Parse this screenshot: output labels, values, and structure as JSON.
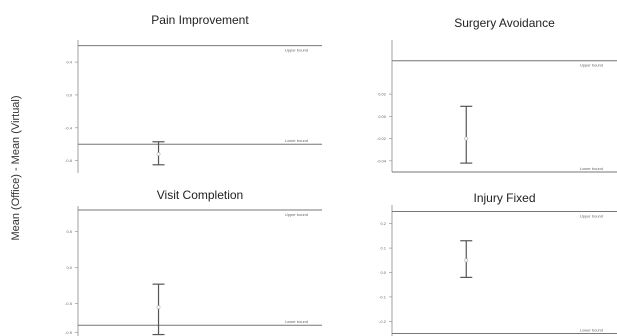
{
  "ylabel": "Mean (Office) - Mean (Virtual)",
  "bound_labels": {
    "upper": "Upper bound",
    "lower": "Lower bound"
  },
  "chart_data": [
    {
      "type": "scatter",
      "title": "Pain Improvement",
      "ylim": [
        -0.95,
        0.62
      ],
      "yticks": [
        0.4,
        0.0,
        -0.4,
        -0.8
      ],
      "tick_labels": [
        "0.4",
        "0.0",
        "-0.4",
        "-0.8"
      ],
      "upper_bound": 0.6,
      "lower_bound": -0.6,
      "estimate": -0.72,
      "ci": [
        -0.85,
        -0.57
      ]
    },
    {
      "type": "scatter",
      "title": "Surgery Avoidance",
      "ylim": [
        -0.05,
        0.065
      ],
      "yticks": [
        0.02,
        0.0,
        -0.02,
        -0.04
      ],
      "tick_labels": [
        "0.02",
        "0.00",
        "-0.02",
        "-0.04"
      ],
      "upper_bound": 0.05,
      "lower_bound": -0.05,
      "estimate": -0.02,
      "ci": [
        -0.042,
        0.009
      ]
    },
    {
      "type": "scatter",
      "title": "Visit Completion",
      "ylim": [
        -0.95,
        0.8
      ],
      "yticks": [
        0.5,
        0.0,
        -0.5,
        -0.9
      ],
      "tick_labels": [
        "0.5",
        "0.0",
        "-0.5",
        "-0.9"
      ],
      "upper_bound": 0.8,
      "lower_bound": -0.8,
      "estimate": -0.55,
      "ci": [
        -0.93,
        -0.23
      ]
    },
    {
      "type": "scatter",
      "title": "Injury Fixed",
      "ylim": [
        -0.26,
        0.26
      ],
      "yticks": [
        0.2,
        0.1,
        0.0,
        -0.1,
        -0.2
      ],
      "tick_labels": [
        "0.2",
        "0.1",
        "0.0",
        "-0.1",
        "-0.2"
      ],
      "upper_bound": 0.25,
      "lower_bound": -0.25,
      "estimate": 0.05,
      "ci": [
        -0.02,
        0.13
      ]
    }
  ]
}
